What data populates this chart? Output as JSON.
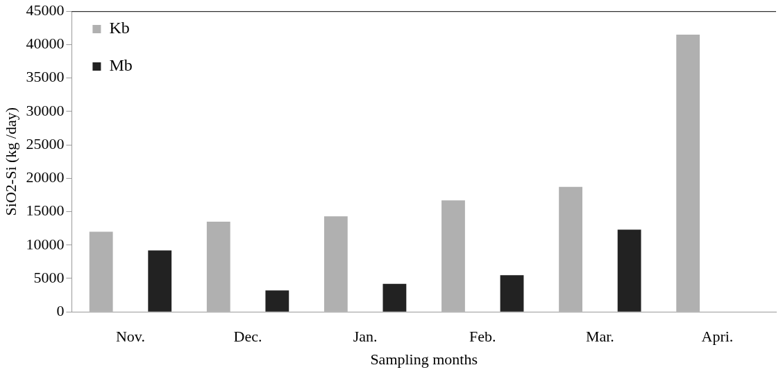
{
  "chart_data": {
    "type": "bar",
    "xlabel": "Sampling months",
    "ylabel": "SiO2-Si (kg /day)",
    "categories": [
      "Nov.",
      "Dec.",
      "Jan.",
      "Feb.",
      "Mar.",
      "Apri."
    ],
    "series": [
      {
        "name": "Kb",
        "color": "#b0b0b0",
        "values": [
          12000,
          13500,
          14300,
          16700,
          18700,
          41500
        ]
      },
      {
        "name": "Mb",
        "color": "#222222",
        "values": [
          9200,
          3200,
          4200,
          5500,
          12300,
          null
        ]
      }
    ],
    "ylim": [
      0,
      45000
    ],
    "yticks": [
      0,
      5000,
      10000,
      15000,
      20000,
      25000,
      30000,
      35000,
      40000,
      45000
    ],
    "grid": false,
    "legend": "top left"
  }
}
